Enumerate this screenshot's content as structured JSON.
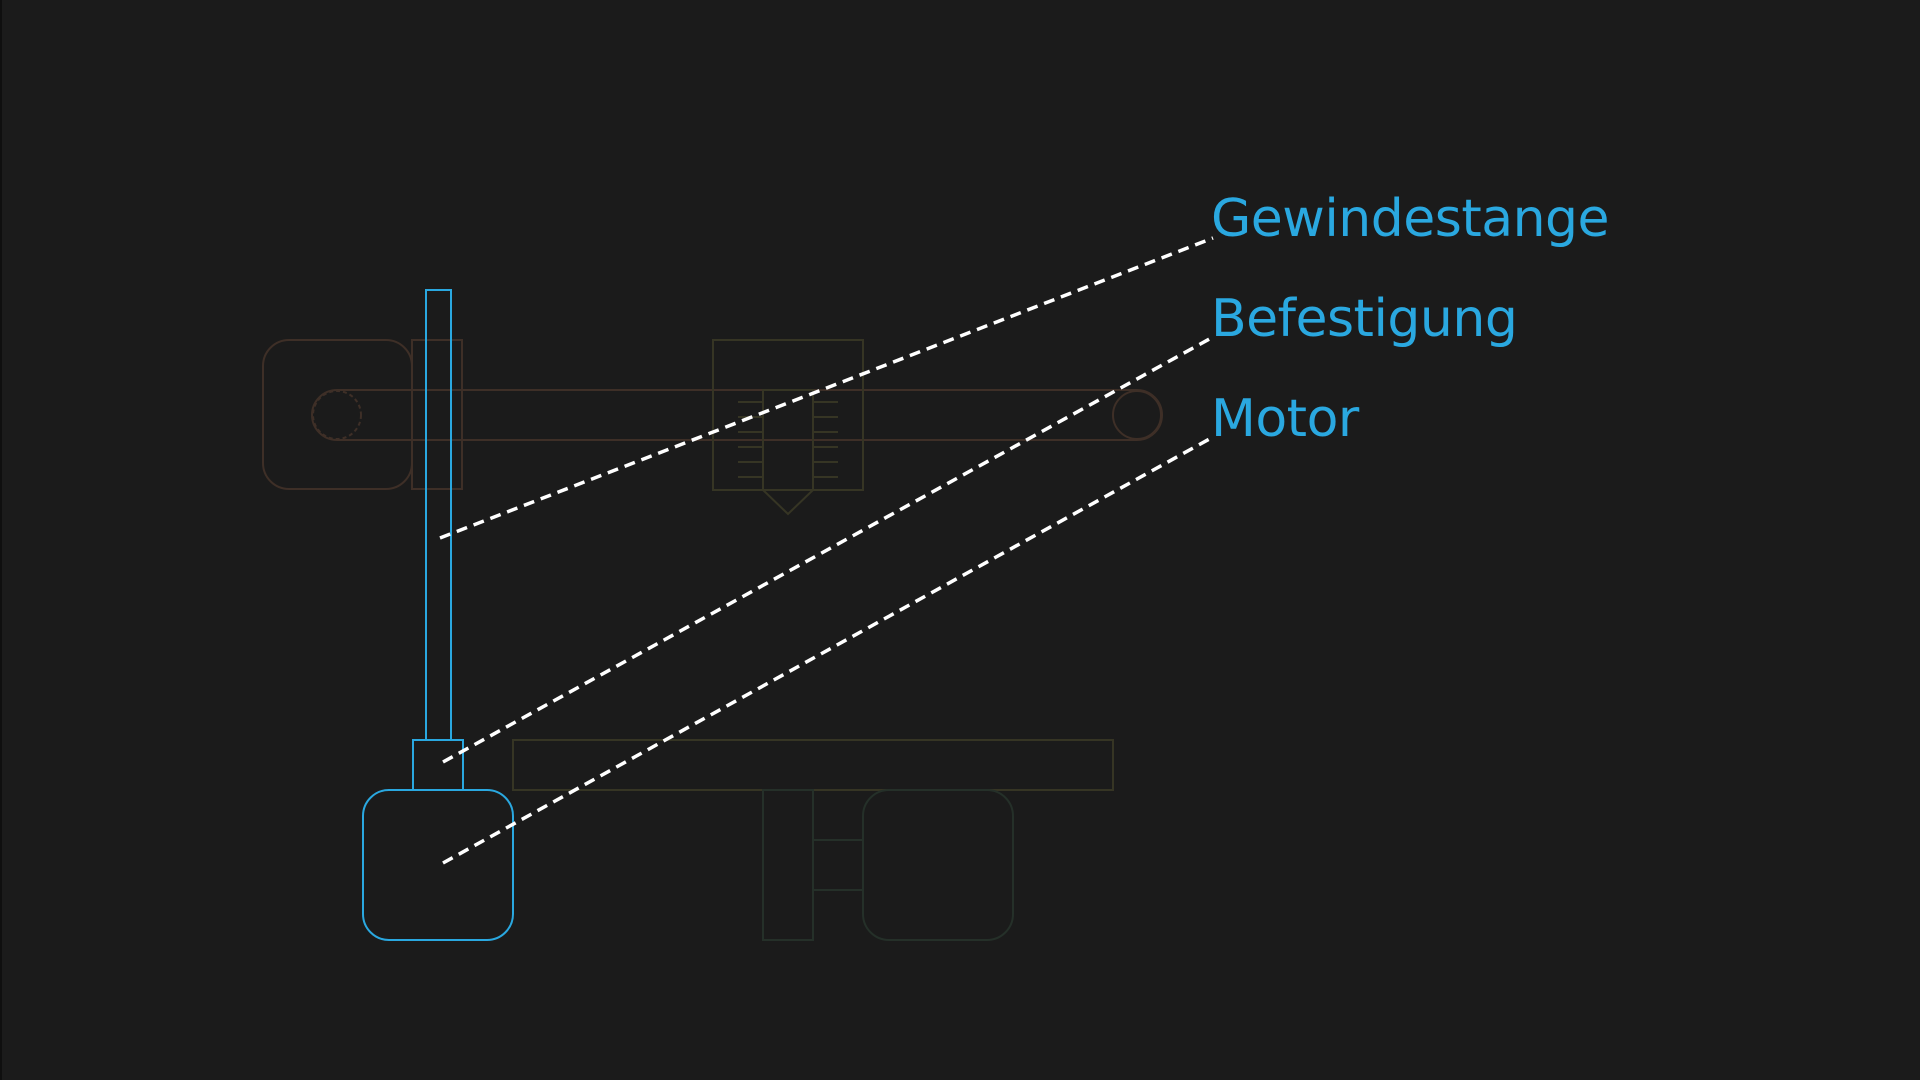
{
  "labels": {
    "threaded_rod": "Gewindestange",
    "mount": "Befestigung",
    "motor": "Motor"
  },
  "colors": {
    "background": "#1b1b1b",
    "highlight": "#2aa8e0",
    "leader_line": "#ffffff",
    "faded_brown": "#3e2f27",
    "faded_olive": "#363524",
    "faded_green": "#253029"
  }
}
